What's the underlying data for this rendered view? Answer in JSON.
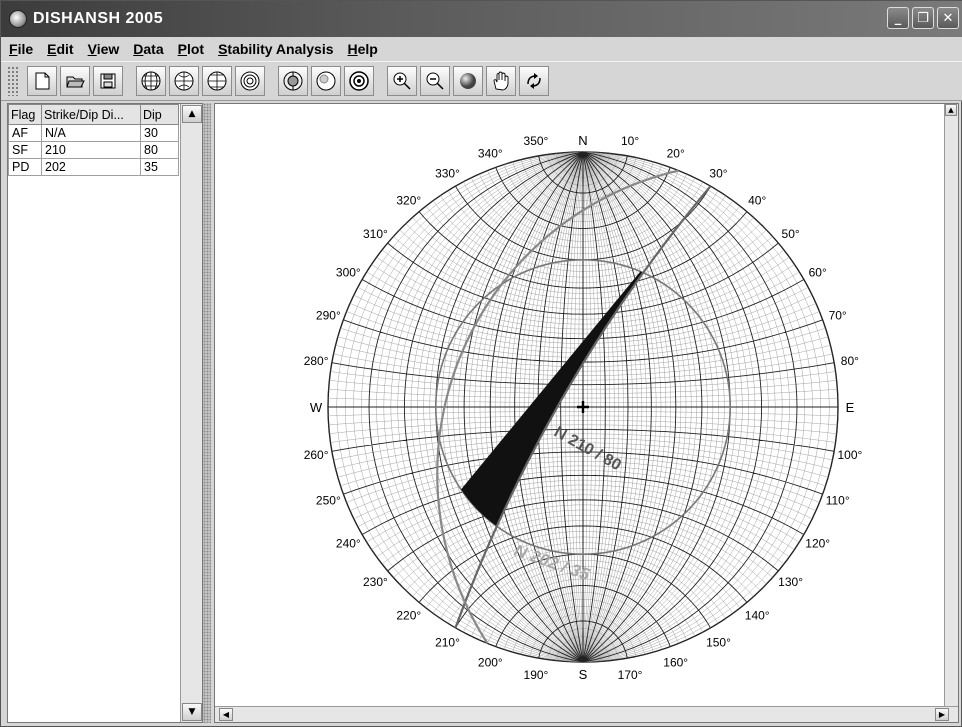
{
  "window": {
    "title": "DISHANSH 2005"
  },
  "menu": [
    {
      "label": "File",
      "u": "F",
      "rest": "ile"
    },
    {
      "label": "Edit",
      "u": "E",
      "rest": "dit"
    },
    {
      "label": "View",
      "u": "V",
      "rest": "iew"
    },
    {
      "label": "Data",
      "u": "D",
      "rest": "ata"
    },
    {
      "label": "Plot",
      "u": "P",
      "rest": "lot"
    },
    {
      "label": "Stability Analysis",
      "u": "S",
      "rest": "tability Analysis"
    },
    {
      "label": "Help",
      "u": "H",
      "rest": "elp"
    }
  ],
  "toolbar": {
    "icons": [
      "new-file-icon",
      "open-folder-icon",
      "save-disk-icon",
      "equal-area-net-icon",
      "polar-net-icon",
      "wulff-net-icon",
      "concentric-net-icon",
      "schmidt-net-icon",
      "pole-net-icon",
      "contour-net-icon",
      "zoom-in-icon",
      "zoom-out-icon",
      "sphere-icon",
      "hand-pan-icon",
      "rotate-icon"
    ]
  },
  "table": {
    "headers": [
      "Flag",
      "Strike/Dip Di...",
      "Dip"
    ],
    "rows": [
      [
        "AF",
        "N/A",
        "30"
      ],
      [
        "SF",
        "210",
        "80"
      ],
      [
        "PD",
        "202",
        "35"
      ]
    ]
  },
  "stereonet": {
    "cardinals": {
      "n": "N",
      "e": "E",
      "s": "S",
      "w": "W"
    },
    "degree_labels": [
      "10°",
      "20°",
      "30°",
      "40°",
      "50°",
      "60°",
      "70°",
      "80°",
      "100°",
      "110°",
      "120°",
      "130°",
      "140°",
      "150°",
      "160°",
      "170°",
      "190°",
      "200°",
      "210°",
      "220°",
      "230°",
      "240°",
      "250°",
      "260°",
      "280°",
      "290°",
      "300°",
      "310°",
      "320°",
      "330°",
      "340°",
      "350°"
    ],
    "plane_labels": [
      "N 210 / 80",
      "N 202 / 35"
    ],
    "planes": [
      {
        "strike": 210,
        "dip": 80
      },
      {
        "strike": 202,
        "dip": 35
      }
    ],
    "friction_angle": 30
  }
}
